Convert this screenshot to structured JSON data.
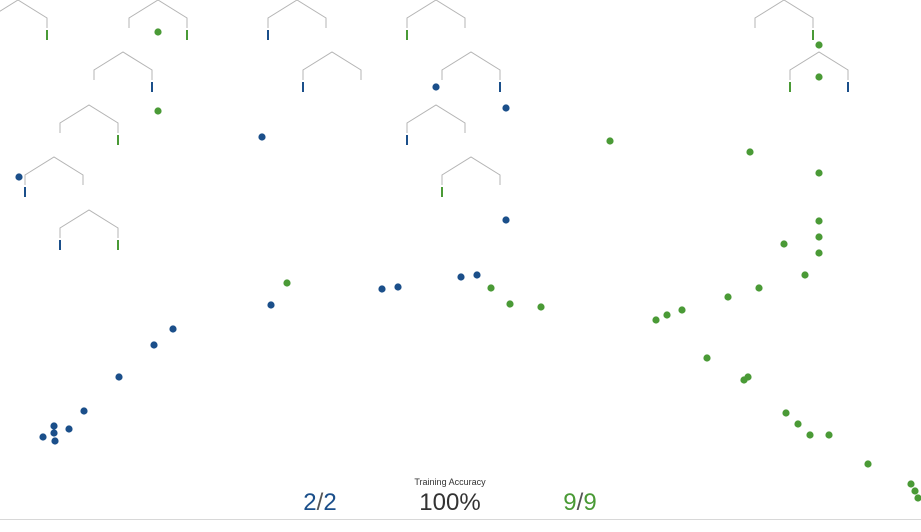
{
  "colors": {
    "class_a": "#1b4f8a",
    "class_b": "#4a9a36",
    "branch": "#b4b4b4",
    "text": "#333333"
  },
  "accuracy": {
    "title": "Training Accuracy",
    "percent": "100%",
    "left": {
      "num": "2",
      "sep": "/",
      "den": "2"
    },
    "right": {
      "num": "9",
      "sep": "/",
      "den": "9"
    }
  }
}
